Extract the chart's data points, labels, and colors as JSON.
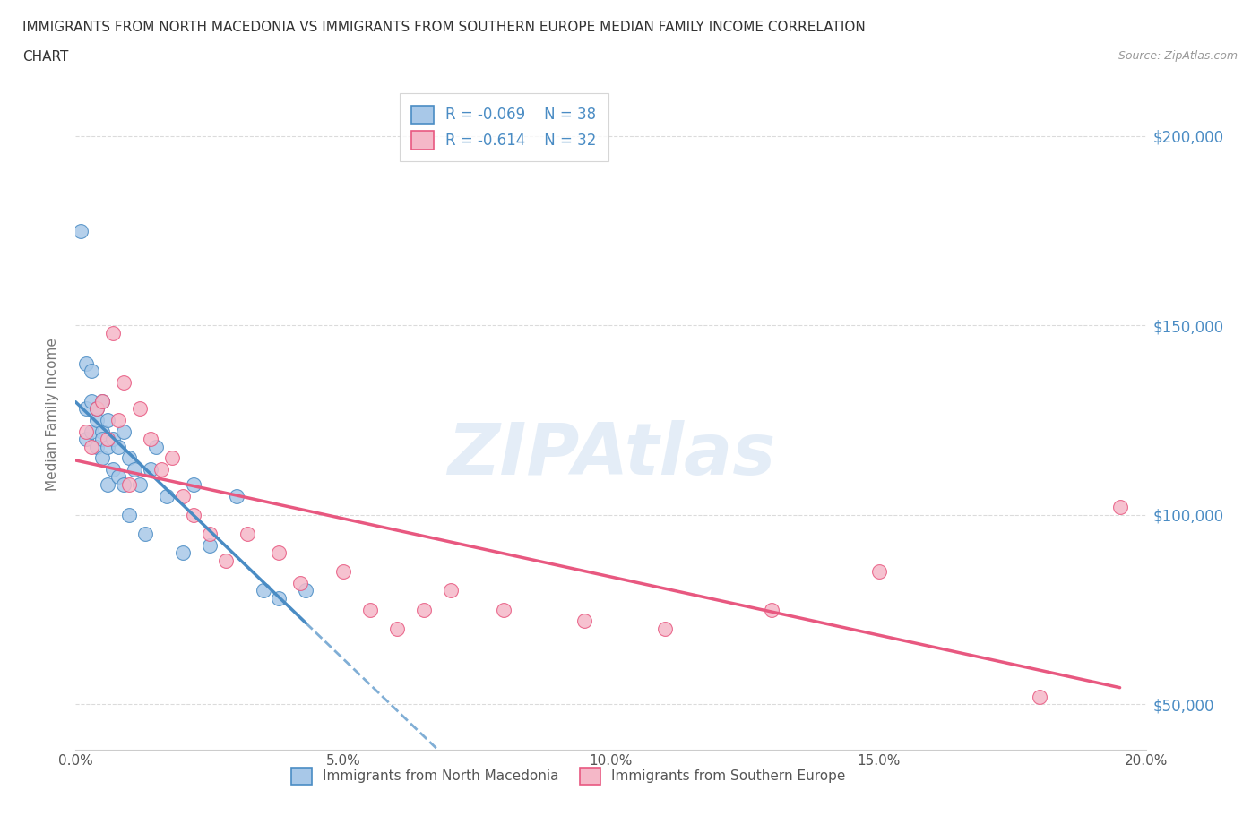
{
  "title_line1": "IMMIGRANTS FROM NORTH MACEDONIA VS IMMIGRANTS FROM SOUTHERN EUROPE MEDIAN FAMILY INCOME CORRELATION",
  "title_line2": "CHART",
  "source_text": "Source: ZipAtlas.com",
  "ylabel": "Median Family Income",
  "xlim": [
    0.0,
    0.2
  ],
  "ylim": [
    38000,
    215000
  ],
  "yticks": [
    50000,
    100000,
    150000,
    200000
  ],
  "ytick_labels": [
    "$50,000",
    "$100,000",
    "$150,000",
    "$200,000"
  ],
  "xticks": [
    0.0,
    0.05,
    0.1,
    0.15,
    0.2
  ],
  "xtick_labels": [
    "0.0%",
    "5.0%",
    "10.0%",
    "15.0%",
    "20.0%"
  ],
  "legend_r1": "R = -0.069",
  "legend_n1": "N = 38",
  "legend_r2": "R = -0.614",
  "legend_n2": "N = 32",
  "color_blue": "#a8c8e8",
  "color_pink": "#f5b8c8",
  "line_color_blue": "#4a8cc4",
  "line_color_pink": "#e85880",
  "label_color": "#4a8cc4",
  "watermark": "ZIPAtlas",
  "scatter_blue_x": [
    0.001,
    0.002,
    0.002,
    0.002,
    0.003,
    0.003,
    0.003,
    0.004,
    0.004,
    0.004,
    0.005,
    0.005,
    0.005,
    0.005,
    0.006,
    0.006,
    0.006,
    0.007,
    0.007,
    0.008,
    0.008,
    0.009,
    0.009,
    0.01,
    0.01,
    0.011,
    0.012,
    0.013,
    0.014,
    0.015,
    0.017,
    0.02,
    0.022,
    0.025,
    0.03,
    0.035,
    0.038,
    0.043
  ],
  "scatter_blue_y": [
    175000,
    140000,
    128000,
    120000,
    138000,
    130000,
    122000,
    125000,
    118000,
    128000,
    130000,
    122000,
    115000,
    120000,
    125000,
    118000,
    108000,
    120000,
    112000,
    118000,
    110000,
    108000,
    122000,
    115000,
    100000,
    112000,
    108000,
    95000,
    112000,
    118000,
    105000,
    90000,
    108000,
    92000,
    105000,
    80000,
    78000,
    80000
  ],
  "scatter_pink_x": [
    0.002,
    0.003,
    0.004,
    0.005,
    0.006,
    0.007,
    0.008,
    0.009,
    0.01,
    0.012,
    0.014,
    0.016,
    0.018,
    0.02,
    0.022,
    0.025,
    0.028,
    0.032,
    0.038,
    0.042,
    0.05,
    0.055,
    0.06,
    0.065,
    0.07,
    0.08,
    0.095,
    0.11,
    0.13,
    0.15,
    0.18,
    0.195
  ],
  "scatter_pink_y": [
    122000,
    118000,
    128000,
    130000,
    120000,
    148000,
    125000,
    135000,
    108000,
    128000,
    120000,
    112000,
    115000,
    105000,
    100000,
    95000,
    88000,
    95000,
    90000,
    82000,
    85000,
    75000,
    70000,
    75000,
    80000,
    75000,
    72000,
    70000,
    75000,
    85000,
    52000,
    102000
  ],
  "background_color": "#ffffff",
  "grid_color": "#cccccc"
}
